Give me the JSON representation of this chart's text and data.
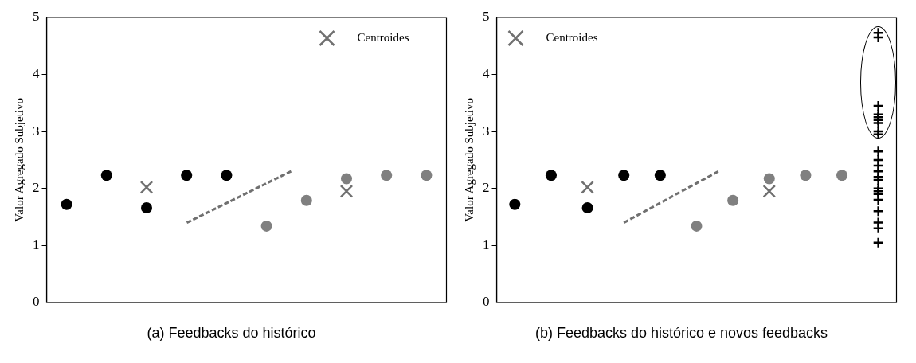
{
  "chart_data": [
    {
      "type": "scatter",
      "ylabel": "Valor Agregado Subjetivo",
      "categories": [
        null,
        null,
        null,
        null,
        null,
        null,
        null,
        null,
        null,
        null
      ],
      "ylim": [
        0,
        5
      ],
      "yticks": [
        0,
        1,
        2,
        3,
        4,
        5
      ],
      "tick_labels": "y",
      "grid": false,
      "legend": "top right",
      "annotations": [
        "(a) Feedbacks do histórico"
      ],
      "series": [
        {
          "color": "#000000",
          "marker": "circle",
          "values": [
            1.72,
            2.23,
            1.66,
            2.23,
            2.23,
            null,
            null,
            null,
            null,
            null
          ]
        },
        {
          "color": "#808080",
          "marker": "circle",
          "values": [
            null,
            null,
            null,
            null,
            null,
            1.34,
            1.79,
            2.17,
            2.23,
            2.23
          ]
        },
        {
          "name": "Centroides",
          "color": "#707070",
          "marker": "cross",
          "values": [
            null,
            null,
            2.02,
            null,
            null,
            null,
            null,
            1.95,
            null,
            null
          ]
        }
      ]
    },
    {
      "type": "scatter",
      "ylabel": "Valor Agregado Subjetivo",
      "categories": [
        null,
        null,
        null,
        null,
        null,
        null,
        null,
        null,
        null,
        null,
        null
      ],
      "ylim": [
        0,
        5
      ],
      "yticks": [
        0,
        1,
        2,
        3,
        4,
        5
      ],
      "tick_labels": "y",
      "grid": false,
      "legend": "top left",
      "annotations": [
        "(b) Feedbacks do histórico e novos feedbacks"
      ],
      "series": [
        {
          "color": "#000000",
          "marker": "circle",
          "values": [
            1.72,
            2.23,
            1.66,
            2.23,
            2.23,
            null,
            null,
            null,
            null,
            null,
            null
          ]
        },
        {
          "color": "#808080",
          "marker": "circle",
          "values": [
            null,
            null,
            null,
            null,
            null,
            1.34,
            1.79,
            2.17,
            2.23,
            2.23,
            null
          ]
        },
        {
          "name": "Centroides",
          "color": "#707070",
          "marker": "cross",
          "values": [
            null,
            null,
            2.02,
            null,
            null,
            null,
            null,
            1.95,
            null,
            null,
            null
          ]
        },
        {
          "color": "#000000",
          "marker": "plus",
          "values": [
            null,
            null,
            null,
            null,
            null,
            null,
            null,
            null,
            null,
            null,
            4.73
          ]
        },
        {
          "color": "#000000",
          "marker": "plus",
          "values": [
            null,
            null,
            null,
            null,
            null,
            null,
            null,
            null,
            null,
            null,
            4.65
          ]
        },
        {
          "color": "#000000",
          "marker": "plus",
          "values": [
            null,
            null,
            null,
            null,
            null,
            null,
            null,
            null,
            null,
            null,
            3.45
          ]
        },
        {
          "color": "#000000",
          "marker": "plus",
          "values": [
            null,
            null,
            null,
            null,
            null,
            null,
            null,
            null,
            null,
            null,
            3.3
          ]
        },
        {
          "color": "#000000",
          "marker": "plus",
          "values": [
            null,
            null,
            null,
            null,
            null,
            null,
            null,
            null,
            null,
            null,
            3.25
          ]
        },
        {
          "color": "#000000",
          "marker": "plus",
          "values": [
            null,
            null,
            null,
            null,
            null,
            null,
            null,
            null,
            null,
            null,
            3.2
          ]
        },
        {
          "color": "#000000",
          "marker": "plus",
          "values": [
            null,
            null,
            null,
            null,
            null,
            null,
            null,
            null,
            null,
            null,
            3.15
          ]
        },
        {
          "color": "#000000",
          "marker": "plus",
          "values": [
            null,
            null,
            null,
            null,
            null,
            null,
            null,
            null,
            null,
            null,
            3.0
          ]
        },
        {
          "color": "#000000",
          "marker": "plus",
          "values": [
            null,
            null,
            null,
            null,
            null,
            null,
            null,
            null,
            null,
            null,
            2.95
          ]
        },
        {
          "color": "#000000",
          "marker": "plus",
          "values": [
            null,
            null,
            null,
            null,
            null,
            null,
            null,
            null,
            null,
            null,
            2.65
          ]
        },
        {
          "color": "#000000",
          "marker": "plus",
          "values": [
            null,
            null,
            null,
            null,
            null,
            null,
            null,
            null,
            null,
            null,
            2.5
          ]
        },
        {
          "color": "#000000",
          "marker": "plus",
          "values": [
            null,
            null,
            null,
            null,
            null,
            null,
            null,
            null,
            null,
            null,
            2.4
          ]
        },
        {
          "color": "#000000",
          "marker": "plus",
          "values": [
            null,
            null,
            null,
            null,
            null,
            null,
            null,
            null,
            null,
            null,
            2.3
          ]
        },
        {
          "color": "#000000",
          "marker": "plus",
          "values": [
            null,
            null,
            null,
            null,
            null,
            null,
            null,
            null,
            null,
            null,
            2.2
          ]
        },
        {
          "color": "#000000",
          "marker": "plus",
          "values": [
            null,
            null,
            null,
            null,
            null,
            null,
            null,
            null,
            null,
            null,
            2.15
          ]
        },
        {
          "color": "#000000",
          "marker": "plus",
          "values": [
            null,
            null,
            null,
            null,
            null,
            null,
            null,
            null,
            null,
            null,
            2.0
          ]
        },
        {
          "color": "#000000",
          "marker": "plus",
          "values": [
            null,
            null,
            null,
            null,
            null,
            null,
            null,
            null,
            null,
            null,
            1.95
          ]
        },
        {
          "color": "#000000",
          "marker": "plus",
          "values": [
            null,
            null,
            null,
            null,
            null,
            null,
            null,
            null,
            null,
            null,
            1.9
          ]
        },
        {
          "color": "#000000",
          "marker": "plus",
          "values": [
            null,
            null,
            null,
            null,
            null,
            null,
            null,
            null,
            null,
            null,
            1.8
          ]
        },
        {
          "color": "#000000",
          "marker": "plus",
          "values": [
            null,
            null,
            null,
            null,
            null,
            null,
            null,
            null,
            null,
            null,
            1.6
          ]
        },
        {
          "color": "#000000",
          "marker": "plus",
          "values": [
            null,
            null,
            null,
            null,
            null,
            null,
            null,
            null,
            null,
            null,
            1.4
          ]
        },
        {
          "color": "#000000",
          "marker": "plus",
          "values": [
            null,
            null,
            null,
            null,
            null,
            null,
            null,
            null,
            null,
            null,
            1.3
          ]
        },
        {
          "color": "#000000",
          "marker": "plus",
          "values": [
            null,
            null,
            null,
            null,
            null,
            null,
            null,
            null,
            null,
            null,
            1.05
          ]
        }
      ]
    }
  ]
}
